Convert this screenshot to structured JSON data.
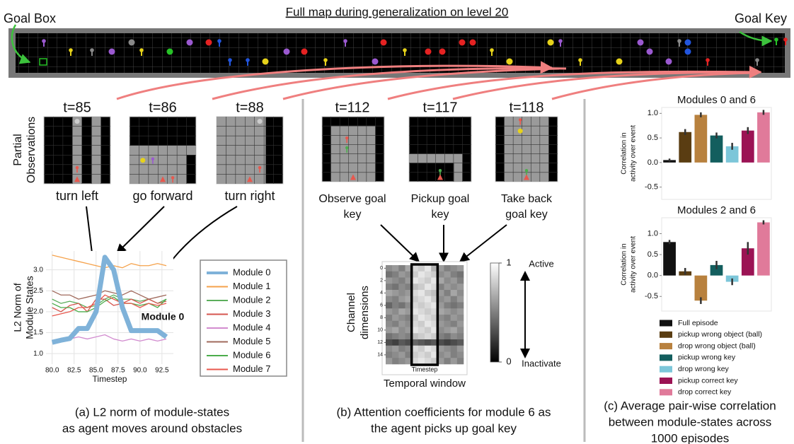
{
  "title": "Full map during generalization on level 20",
  "map_labels": {
    "goal_box": "Goal Box",
    "goal_key": "Goal Key"
  },
  "panel_a": {
    "observations_label": [
      "Partial",
      "Observations"
    ],
    "frames": [
      {
        "time": "t=85",
        "action": "turn left"
      },
      {
        "time": "t=86",
        "action": "go forward"
      },
      {
        "time": "t=88",
        "action": "turn right"
      }
    ],
    "caption": [
      "(a) L2 norm of module-states",
      "as agent moves around obstacles"
    ]
  },
  "panel_b": {
    "frames": [
      {
        "time": "t=112",
        "label": [
          "Observe goal",
          "key"
        ]
      },
      {
        "time": "t=117",
        "label": [
          "Pickup goal",
          "key"
        ]
      },
      {
        "time": "t=118",
        "label": [
          "Take back",
          "goal key"
        ]
      }
    ],
    "caption": [
      "(b) Attention coefficients for module 6 as",
      "the agent picks up goal key"
    ]
  },
  "panel_c": {
    "caption": [
      "(c) Average pair-wise correlation",
      "between module-states across",
      "1000 episodes"
    ]
  },
  "chart_data": [
    {
      "type": "line",
      "y_label": [
        "L2 Norm of",
        "Module States"
      ],
      "x_label": "Timestep",
      "annotation": "Module 0",
      "grid": true,
      "x": [
        80,
        81,
        82,
        83,
        84,
        85,
        86,
        87,
        88,
        89,
        90,
        91,
        92,
        93
      ],
      "xlim": [
        79.3,
        93.8
      ],
      "ylim": [
        0.75,
        3.45
      ],
      "xticks": [
        {
          "value": 80,
          "label": "80.0"
        },
        {
          "value": 82.5,
          "label": "82.5"
        },
        {
          "value": 85,
          "label": "85.0"
        },
        {
          "value": 87.5,
          "label": "87.5"
        },
        {
          "value": 90,
          "label": "90.0"
        },
        {
          "value": 92.5,
          "label": "92.5"
        }
      ],
      "yticks": [
        {
          "value": 1,
          "label": "1.0"
        },
        {
          "value": 1.5,
          "label": "1.5"
        },
        {
          "value": 2,
          "label": "2.0"
        },
        {
          "value": 2.5,
          "label": "2.5"
        },
        {
          "value": 3,
          "label": "3.0"
        }
      ],
      "series": [
        {
          "name": "Module 0",
          "color": "#7fb2d9",
          "width": 7,
          "values": [
            1.27,
            1.32,
            1.36,
            1.6,
            1.6,
            2.0,
            3.3,
            3.0,
            2.1,
            1.55,
            1.55,
            1.55,
            1.55,
            1.4
          ]
        },
        {
          "name": "Module 1",
          "color": "#f5a24b",
          "width": 1.3,
          "values": [
            3.35,
            3.3,
            3.25,
            3.2,
            3.15,
            3.1,
            3.05,
            3.1,
            3.05,
            3.15,
            3.1,
            3.1,
            3.15,
            3.1
          ]
        },
        {
          "name": "Module 2",
          "color": "#5cae5c",
          "width": 1.3,
          "values": [
            2.3,
            2.2,
            2.25,
            2.2,
            2.1,
            2.15,
            2.3,
            2.4,
            2.3,
            2.3,
            2.25,
            2.3,
            2.2,
            2.3
          ]
        },
        {
          "name": "Module 3",
          "color": "#d6554f",
          "width": 1.3,
          "values": [
            2.1,
            2.0,
            2.15,
            2.2,
            2.0,
            2.3,
            2.3,
            2.15,
            2.2,
            2.3,
            2.2,
            2.3,
            2.2,
            2.25
          ]
        },
        {
          "name": "Module 4",
          "color": "#d28ccf",
          "width": 1.3,
          "values": [
            1.3,
            1.3,
            1.35,
            1.4,
            1.35,
            1.4,
            1.45,
            1.35,
            1.3,
            1.35,
            1.3,
            1.35,
            1.3,
            1.35
          ]
        },
        {
          "name": "Module 5",
          "color": "#a06a5c",
          "width": 1.3,
          "values": [
            2.5,
            2.4,
            2.4,
            2.3,
            2.35,
            2.4,
            2.5,
            2.45,
            2.4,
            2.5,
            2.4,
            2.3,
            2.35,
            2.4
          ]
        },
        {
          "name": "Module 6",
          "color": "#4cad4c",
          "width": 1.3,
          "values": [
            2.2,
            2.1,
            2.1,
            2.0,
            2.0,
            2.1,
            2.25,
            2.35,
            2.2,
            2.2,
            2.15,
            2.2,
            2.1,
            2.3
          ]
        },
        {
          "name": "Module 7",
          "color": "#e8584e",
          "width": 1.3,
          "values": [
            1.9,
            1.95,
            2.0,
            2.1,
            2.1,
            2.2,
            2.4,
            2.3,
            2.2,
            2.2,
            2.1,
            2.2,
            2.15,
            2.2
          ]
        }
      ]
    },
    {
      "type": "heatmap",
      "y_label": [
        "Channel",
        "dimensions"
      ],
      "x_label": "Timestep",
      "caption": "Temporal window",
      "yticks": [
        0,
        2,
        4,
        6,
        8,
        10,
        12,
        14
      ],
      "window": [
        4,
        7
      ],
      "colorbar": {
        "ticks": [
          1,
          0
        ],
        "labels": [
          "Active",
          "Inactivate"
        ]
      },
      "values": [
        [
          0.55,
          0.6,
          0.5,
          0.65,
          0.85,
          0.8,
          0.9,
          0.7,
          0.6,
          0.5,
          0.55,
          0.6
        ],
        [
          0.45,
          0.5,
          0.6,
          0.55,
          0.8,
          0.9,
          0.85,
          0.8,
          0.55,
          0.6,
          0.5,
          0.45
        ],
        [
          0.6,
          0.55,
          0.5,
          0.6,
          0.9,
          0.85,
          0.8,
          0.9,
          0.65,
          0.55,
          0.6,
          0.5
        ],
        [
          0.5,
          0.45,
          0.55,
          0.5,
          0.75,
          0.8,
          0.9,
          0.85,
          0.5,
          0.6,
          0.55,
          0.6
        ],
        [
          0.65,
          0.6,
          0.55,
          0.6,
          0.85,
          0.9,
          0.8,
          0.75,
          0.6,
          0.5,
          0.65,
          0.55
        ],
        [
          0.55,
          0.5,
          0.6,
          0.65,
          0.8,
          0.85,
          0.9,
          0.8,
          0.55,
          0.6,
          0.5,
          0.6
        ],
        [
          0.4,
          0.5,
          0.45,
          0.55,
          0.85,
          0.8,
          0.85,
          0.9,
          0.6,
          0.5,
          0.45,
          0.5
        ],
        [
          0.6,
          0.55,
          0.65,
          0.6,
          0.9,
          0.85,
          0.8,
          0.85,
          0.65,
          0.6,
          0.55,
          0.6
        ],
        [
          0.5,
          0.6,
          0.55,
          0.5,
          0.8,
          0.9,
          0.85,
          0.8,
          0.55,
          0.5,
          0.6,
          0.55
        ],
        [
          0.55,
          0.5,
          0.6,
          0.55,
          0.85,
          0.8,
          0.9,
          0.85,
          0.6,
          0.55,
          0.5,
          0.6
        ],
        [
          0.6,
          0.65,
          0.55,
          0.6,
          0.9,
          0.85,
          0.8,
          0.9,
          0.55,
          0.6,
          0.65,
          0.55
        ],
        [
          0.45,
          0.5,
          0.55,
          0.5,
          0.75,
          0.8,
          0.85,
          0.8,
          0.5,
          0.45,
          0.55,
          0.5
        ],
        [
          0.3,
          0.25,
          0.35,
          0.3,
          0.4,
          0.35,
          0.3,
          0.35,
          0.3,
          0.25,
          0.3,
          0.35
        ],
        [
          0.55,
          0.6,
          0.5,
          0.55,
          0.85,
          0.8,
          0.9,
          0.85,
          0.6,
          0.55,
          0.5,
          0.6
        ],
        [
          0.5,
          0.55,
          0.6,
          0.5,
          0.8,
          0.85,
          0.8,
          0.9,
          0.55,
          0.6,
          0.5,
          0.55
        ],
        [
          0.6,
          0.5,
          0.55,
          0.6,
          0.85,
          0.9,
          0.85,
          0.8,
          0.6,
          0.5,
          0.6,
          0.5
        ]
      ]
    },
    {
      "type": "bar",
      "title": "Modules 0 and 6",
      "y_label": [
        "Correlation in",
        "activity over event"
      ],
      "colors": [
        "#111111",
        "#5a3d12",
        "#b8813e",
        "#135e5e",
        "#7cc6d9",
        "#9b1354",
        "#e07a9a"
      ],
      "values": [
        0.05,
        0.62,
        0.97,
        0.55,
        0.33,
        0.65,
        1.02
      ],
      "errors": [
        0.03,
        0.06,
        0.05,
        0.06,
        0.07,
        0.07,
        0.05
      ],
      "ylim": [
        -0.75,
        1.12
      ],
      "yticks": [
        {
          "value": -0.5,
          "label": "-0.5"
        },
        {
          "value": 0,
          "label": "0.0"
        },
        {
          "value": 0.5,
          "label": "0.5"
        },
        {
          "value": 1,
          "label": "1.0"
        }
      ]
    },
    {
      "type": "bar",
      "title": "Modules 2 and 6",
      "y_label": [
        "Correlation in",
        "activity over event"
      ],
      "categories": [
        "Full episode",
        "pickup wrong object (ball)",
        "drop wrong object (ball)",
        "pickup wrong key",
        "drop wrong key",
        "pickup correct key",
        "drop correct key"
      ],
      "colors": [
        "#111111",
        "#5a3d12",
        "#b8813e",
        "#135e5e",
        "#7cc6d9",
        "#9b1354",
        "#e07a9a"
      ],
      "values": [
        0.8,
        0.1,
        -0.6,
        0.25,
        -0.15,
        0.65,
        1.27
      ],
      "errors": [
        0.05,
        0.08,
        0.08,
        0.1,
        0.08,
        0.15,
        0.05
      ],
      "ylim": [
        -0.85,
        1.38
      ],
      "yticks": [
        {
          "value": -0.5,
          "label": "-0.5"
        },
        {
          "value": 0,
          "label": "0.0"
        },
        {
          "value": 0.5,
          "label": "0.5"
        },
        {
          "value": 1,
          "label": "1.0"
        }
      ]
    }
  ]
}
